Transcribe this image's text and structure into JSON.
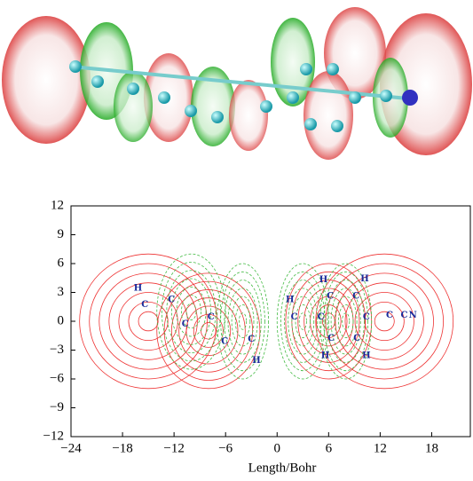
{
  "chart_data": {
    "type": "contour",
    "xlabel": "Length/Bohr",
    "xlim": [
      -24,
      22.5
    ],
    "ylim": [
      -12,
      12
    ],
    "xticks": [
      {
        "value": -24,
        "label": "−24"
      },
      {
        "value": -18,
        "label": "−18"
      },
      {
        "value": -12,
        "label": "−12"
      },
      {
        "value": -6,
        "label": "−6"
      },
      0,
      6,
      12,
      18
    ],
    "yticks": [
      {
        "value": -12,
        "label": "−12"
      },
      {
        "value": -9,
        "label": "−9"
      },
      {
        "value": -6,
        "label": "−6"
      },
      {
        "value": -3,
        "label": "−3"
      },
      0,
      3,
      6,
      9,
      12
    ],
    "annotations": [
      {
        "text": "H",
        "x": -16.2,
        "y": 3.4
      },
      {
        "text": "C",
        "x": -15.4,
        "y": 1.7
      },
      {
        "text": "C",
        "x": -12.3,
        "y": 2.2
      },
      {
        "text": "C",
        "x": -10.7,
        "y": -0.3
      },
      {
        "text": "C",
        "x": -7.7,
        "y": 0.4
      },
      {
        "text": "C",
        "x": -6.1,
        "y": -2.1
      },
      {
        "text": "C",
        "x": -3.0,
        "y": -1.9
      },
      {
        "text": "H",
        "x": -2.4,
        "y": -4.1
      },
      {
        "text": "H",
        "x": 1.5,
        "y": 2.2
      },
      {
        "text": "C",
        "x": 2.0,
        "y": 0.4
      },
      {
        "text": "C",
        "x": 5.1,
        "y": 0.4
      },
      {
        "text": "H",
        "x": 5.4,
        "y": 4.3
      },
      {
        "text": "C",
        "x": 6.2,
        "y": 2.6
      },
      {
        "text": "C",
        "x": 9.2,
        "y": 2.6
      },
      {
        "text": "H",
        "x": 10.2,
        "y": 4.4
      },
      {
        "text": "C",
        "x": 10.4,
        "y": 0.4
      },
      {
        "text": "C",
        "x": 6.3,
        "y": -1.8
      },
      {
        "text": "C",
        "x": 9.3,
        "y": -1.8
      },
      {
        "text": "H",
        "x": 5.6,
        "y": -3.6
      },
      {
        "text": "H",
        "x": 10.4,
        "y": -3.6
      },
      {
        "text": "C",
        "x": 13.1,
        "y": 0.6
      },
      {
        "text": "C",
        "x": 14.8,
        "y": 0.6
      },
      {
        "text": "N",
        "x": 15.8,
        "y": 0.6
      }
    ]
  }
}
